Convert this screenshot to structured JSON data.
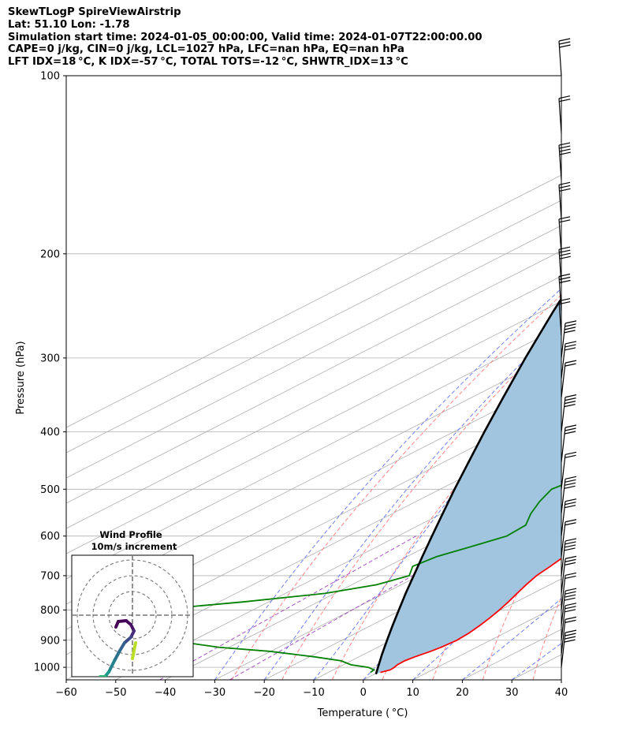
{
  "header": {
    "title": "SkewTLogP SpireViewAirstrip",
    "location": "Lat: 51.10   Lon: -1.78",
    "times": "Simulation start time: 2024-01-05_00:00:00, Valid time: 2024-01-07T22:00:00.00",
    "params": "CAPE=0 j/kg, CIN=0 j/kg, LCL=1027 hPa, LFC=nan hPa, EQ=nan hPa",
    "indices": "LFT IDX=18 °C, K IDX=-57 °C, TOTAL TOTS=-12 °C, SHWTR_IDX=13 °C"
  },
  "chart_data": {
    "type": "line",
    "chart_kind": "skew-T log-P",
    "xlabel": "Temperature ( °C)",
    "ylabel": "Pressure (hPa)",
    "xlim": [
      -60,
      40
    ],
    "ylim": [
      1050,
      100
    ],
    "y_scale": "log",
    "x_ticks": [
      -60,
      -50,
      -40,
      -30,
      -20,
      -10,
      0,
      10,
      20,
      30,
      40
    ],
    "x_tick_labels": [
      "−60",
      "−50",
      "−40",
      "−30",
      "−20",
      "−10",
      "0",
      "10",
      "20",
      "30",
      "40"
    ],
    "y_ticks": [
      1000,
      900,
      800,
      700,
      600,
      500,
      400,
      300,
      200,
      100
    ],
    "y_tick_labels": [
      "1000",
      "900",
      "800",
      "700",
      "600",
      "500",
      "400",
      "300",
      "200",
      "100"
    ],
    "grid": true,
    "colors": {
      "temperature": "#ff0000",
      "dewpoint": "#008000",
      "parcel": "#000000",
      "fill": "#a2c5df",
      "dry_adiabats": "#ff7070",
      "moist_adiabats": "#6070f0",
      "mixing_ratio": "#a040c0",
      "isotherms": "#b0b0b0"
    },
    "series": [
      {
        "key": "temperature",
        "pressure": [
          1020,
          1010,
          1000,
          990,
          975,
          960,
          940,
          925,
          900,
          875,
          850,
          825,
          800,
          775,
          750,
          725,
          700,
          675,
          650,
          625,
          600,
          575,
          550,
          525,
          500,
          475,
          450,
          425,
          400,
          375,
          350,
          325,
          300,
          290,
          275,
          250,
          225,
          200,
          175,
          150,
          125,
          100
        ],
        "temperature": [
          0.5,
          1.5,
          1.3,
          0.9,
          0.8,
          1.3,
          2.3,
          2.8,
          3.2,
          2.8,
          2.0,
          1.0,
          -0.2,
          -1.6,
          -3.2,
          -4.8,
          -6.3,
          -7.2,
          -8.3,
          -9.4,
          -10.8,
          -12.8,
          -14.8,
          -16.9,
          -19.2,
          -21.6,
          -24.4,
          -27.2,
          -30.2,
          -33.3,
          -36.6,
          -39.6,
          -42.4,
          -44.6,
          -46.5,
          -48.0,
          -49.5,
          -50.8,
          -52.5,
          -53.5,
          -55.0,
          -56.5
        ]
      },
      {
        "key": "dewpoint",
        "pressure": [
          1020,
          1010,
          1000,
          990,
          975,
          960,
          940,
          925,
          900,
          875,
          850,
          825,
          800,
          775,
          750,
          725,
          700,
          675,
          650,
          625,
          600,
          575,
          550,
          525,
          500,
          475,
          450,
          425,
          400,
          375,
          350,
          325,
          300,
          275,
          250,
          225,
          200,
          175,
          150,
          125,
          100
        ],
        "temperature": [
          -1.5,
          -1.8,
          -4.0,
          -8.5,
          -12.0,
          -19.0,
          -30.0,
          -42.0,
          -55.0,
          -70.0,
          -80.0,
          -80.0,
          -70.0,
          -55.0,
          -42.0,
          -35.0,
          -32.0,
          -35.0,
          -34.0,
          -31.0,
          -28.0,
          -28.5,
          -32.0,
          -35.0,
          -37.5,
          -36.0,
          -38.0,
          -39.0,
          -40.5,
          -42.0,
          -44.5,
          -49.0,
          -55.0,
          -60.0,
          -63.0,
          -65.5,
          -70.0,
          -78.0,
          -86.0,
          -93.0,
          -100.0
        ]
      },
      {
        "key": "parcel",
        "pressure": [
          1027,
          1000,
          950,
          900,
          850,
          800,
          750,
          700,
          650,
          600,
          550,
          500,
          450,
          400,
          350,
          300,
          250,
          200,
          150,
          100
        ],
        "temperature": [
          0.3,
          -2.0,
          -6.4,
          -10.9,
          -15.6,
          -20.5,
          -25.7,
          -31.1,
          -36.9,
          -43.1,
          -49.8,
          -57.1,
          -65.0,
          -73.8,
          -83.6,
          -94.8,
          -107.7,
          -123.0,
          -142.0,
          -167.0
        ]
      }
    ],
    "inset": {
      "title": "Wind Profile",
      "subtitle": "10m/s increment",
      "colormap": "viridis"
    }
  }
}
